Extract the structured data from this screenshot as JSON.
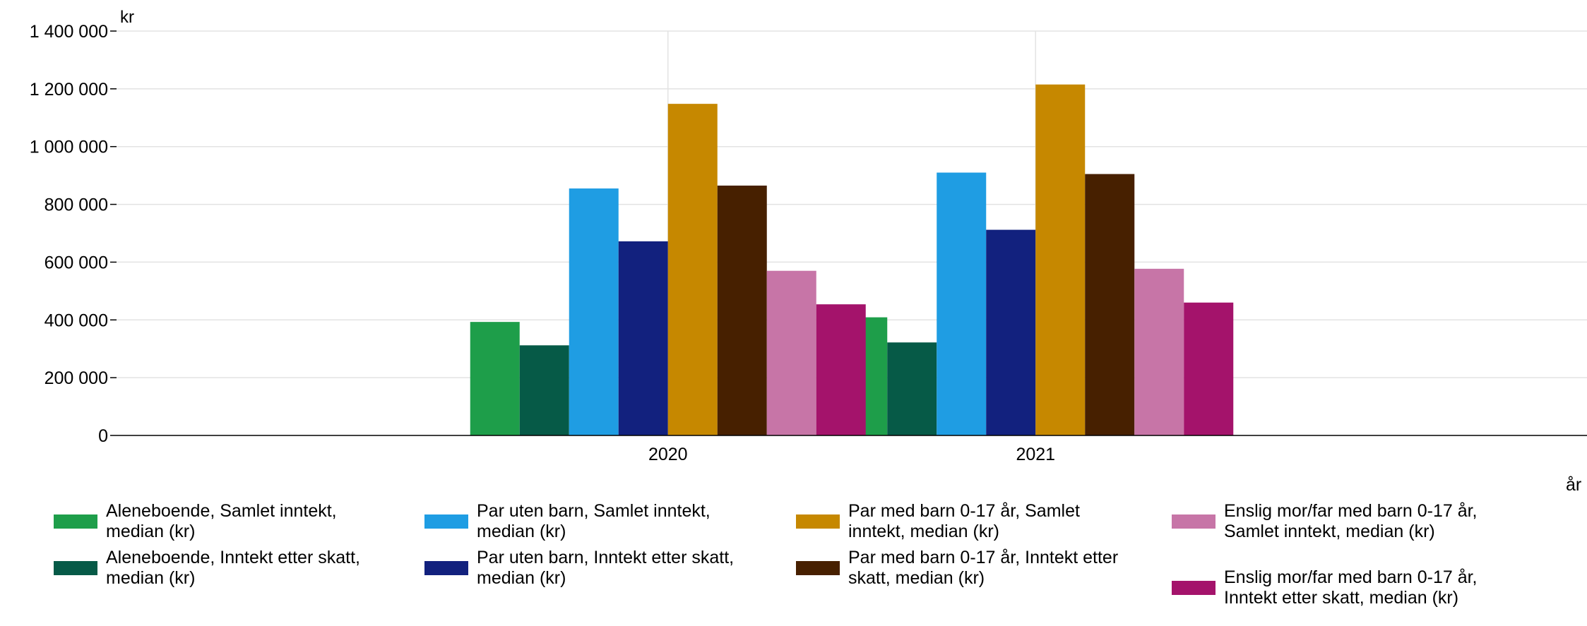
{
  "chart_data": {
    "type": "bar",
    "ylabel": "kr",
    "xlabel": "år",
    "ylim": [
      0,
      1400000
    ],
    "yticks": [
      0,
      200000,
      400000,
      600000,
      800000,
      1000000,
      1200000,
      1400000
    ],
    "ytick_labels": [
      "0",
      "200 000",
      "400 000",
      "600 000",
      "800 000",
      "1 000 000",
      "1 200 000",
      "1 400 000"
    ],
    "categories": [
      "2020",
      "2021"
    ],
    "grid": true,
    "legend_position": "bottom",
    "series": [
      {
        "name": "Aleneboende, Samlet inntekt, median (kr)",
        "color": "#1e9e4a",
        "values": [
          393000,
          409000
        ]
      },
      {
        "name": "Aleneboende, Inntekt etter skatt, median (kr)",
        "color": "#065a47",
        "values": [
          312000,
          322000
        ]
      },
      {
        "name": "Par uten barn, Samlet inntekt, median (kr)",
        "color": "#1f9de3",
        "values": [
          855000,
          910000
        ]
      },
      {
        "name": "Par uten barn, Inntekt etter skatt, median (kr)",
        "color": "#12217e",
        "values": [
          672000,
          712000
        ]
      },
      {
        "name": "Par med barn 0-17 år, Samlet inntekt, median (kr)",
        "color": "#c68800",
        "values": [
          1148000,
          1215000
        ]
      },
      {
        "name": "Par med barn 0-17 år, Inntekt etter skatt, median (kr)",
        "color": "#472000",
        "values": [
          865000,
          905000
        ]
      },
      {
        "name": "Enslig mor/far med barn 0-17 år, Samlet inntekt, median (kr)",
        "color": "#c775a7",
        "values": [
          570000,
          577000
        ]
      },
      {
        "name": "Enslig mor/far med barn 0-17 år, Inntekt etter skatt, median (kr)",
        "color": "#a4136b",
        "values": [
          454000,
          460000
        ]
      }
    ]
  }
}
